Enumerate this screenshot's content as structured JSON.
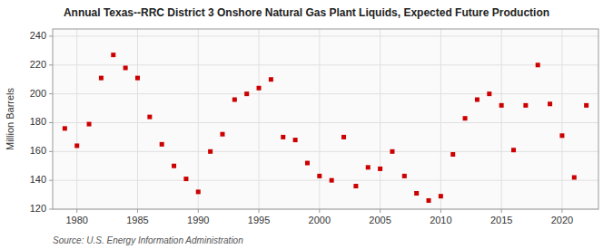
{
  "chart_data": {
    "type": "scatter",
    "title": "Annual Texas--RRC District 3 Onshore Natural Gas Plant Liquids, Expected Future Production",
    "ylabel": "Million Barrels",
    "annotations": [
      "Source: U.S. Energy Information Administration"
    ],
    "color": "#cc0000",
    "marker": "square",
    "grid": true,
    "xlim": [
      1978,
      2023
    ],
    "ylim": [
      120,
      245
    ],
    "xticks": [
      1980,
      1985,
      1990,
      1995,
      2000,
      2005,
      2010,
      2015,
      2020
    ],
    "yticks": [
      120,
      140,
      160,
      180,
      200,
      220,
      240
    ],
    "x": [
      1979,
      1980,
      1981,
      1982,
      1983,
      1984,
      1985,
      1986,
      1987,
      1988,
      1989,
      1990,
      1991,
      1992,
      1993,
      1994,
      1995,
      1996,
      1997,
      1998,
      1999,
      2000,
      2001,
      2002,
      2003,
      2004,
      2005,
      2006,
      2007,
      2008,
      2009,
      2010,
      2011,
      2012,
      2013,
      2014,
      2015,
      2016,
      2017,
      2018,
      2019,
      2020,
      2021,
      2022
    ],
    "values": [
      176,
      164,
      179,
      211,
      227,
      218,
      211,
      184,
      165,
      150,
      141,
      132,
      160,
      172,
      196,
      200,
      204,
      210,
      170,
      168,
      152,
      143,
      140,
      170,
      136,
      149,
      148,
      160,
      143,
      131,
      126,
      129,
      158,
      183,
      196,
      200,
      192,
      161,
      192,
      220,
      193,
      171,
      142,
      192
    ]
  }
}
